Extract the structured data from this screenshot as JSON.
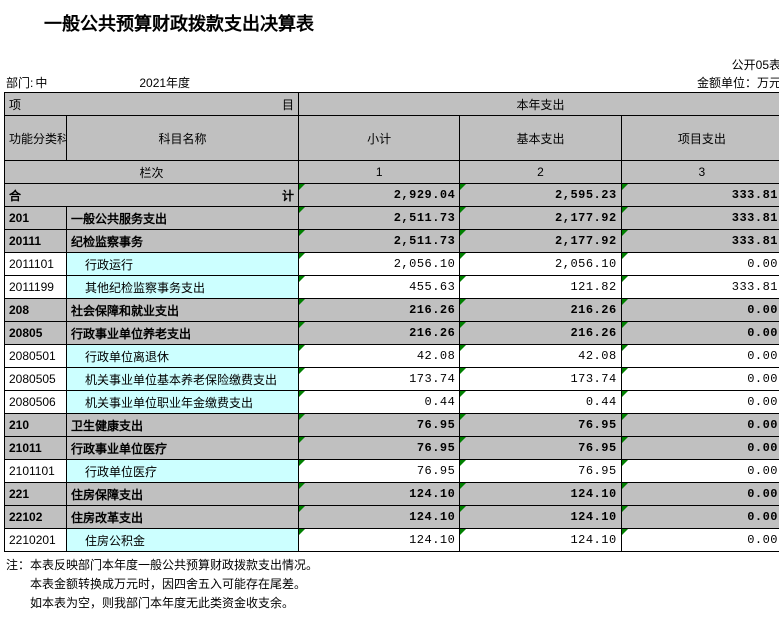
{
  "title": "一般公共预算财政拨款支出决算表",
  "meta": {
    "form_no": "公开05表",
    "dept_label": "部门:",
    "dept_value": "中",
    "year": "2021年度",
    "unit": "金额单位：万元"
  },
  "header": {
    "project": "项",
    "mu": "目",
    "this_year": "本年支出",
    "func_code": "功能分类科目编码",
    "subj_name": "科目名称",
    "subtotal": "小计",
    "basic": "基本支出",
    "project_exp": "项目支出",
    "lane": "栏次",
    "c1": "1",
    "c2": "2",
    "c3": "3"
  },
  "total_row": {
    "label_l": "合",
    "label_r": "计",
    "v1": "2,929.04",
    "v2": "2,595.23",
    "v3": "333.81"
  },
  "rows": [
    {
      "code": "201",
      "name": "一般公共服务支出",
      "v1": "2,511.73",
      "v2": "2,177.92",
      "v3": "333.81",
      "style": "gray",
      "indent": 0
    },
    {
      "code": "20111",
      "name": "纪检监察事务",
      "v1": "2,511.73",
      "v2": "2,177.92",
      "v3": "333.81",
      "style": "gray",
      "indent": 0
    },
    {
      "code": "2011101",
      "name": "行政运行",
      "v1": "2,056.10",
      "v2": "2,056.10",
      "v3": "0.00",
      "style": "cyan",
      "indent": 1
    },
    {
      "code": "2011199",
      "name": "其他纪检监察事务支出",
      "v1": "455.63",
      "v2": "121.82",
      "v3": "333.81",
      "style": "cyan",
      "indent": 1
    },
    {
      "code": "208",
      "name": "社会保障和就业支出",
      "v1": "216.26",
      "v2": "216.26",
      "v3": "0.00",
      "style": "gray",
      "indent": 0
    },
    {
      "code": "20805",
      "name": "行政事业单位养老支出",
      "v1": "216.26",
      "v2": "216.26",
      "v3": "0.00",
      "style": "gray",
      "indent": 0
    },
    {
      "code": "2080501",
      "name": "行政单位离退休",
      "v1": "42.08",
      "v2": "42.08",
      "v3": "0.00",
      "style": "cyan",
      "indent": 1
    },
    {
      "code": "2080505",
      "name": "机关事业单位基本养老保险缴费支出",
      "v1": "173.74",
      "v2": "173.74",
      "v3": "0.00",
      "style": "cyan",
      "indent": 1
    },
    {
      "code": "2080506",
      "name": "机关事业单位职业年金缴费支出",
      "v1": "0.44",
      "v2": "0.44",
      "v3": "0.00",
      "style": "cyan",
      "indent": 1
    },
    {
      "code": "210",
      "name": "卫生健康支出",
      "v1": "76.95",
      "v2": "76.95",
      "v3": "0.00",
      "style": "gray",
      "indent": 0
    },
    {
      "code": "21011",
      "name": "行政事业单位医疗",
      "v1": "76.95",
      "v2": "76.95",
      "v3": "0.00",
      "style": "gray",
      "indent": 0
    },
    {
      "code": "2101101",
      "name": "行政单位医疗",
      "v1": "76.95",
      "v2": "76.95",
      "v3": "0.00",
      "style": "cyan",
      "indent": 1
    },
    {
      "code": "221",
      "name": "住房保障支出",
      "v1": "124.10",
      "v2": "124.10",
      "v3": "0.00",
      "style": "gray",
      "indent": 0
    },
    {
      "code": "22102",
      "name": "住房改革支出",
      "v1": "124.10",
      "v2": "124.10",
      "v3": "0.00",
      "style": "gray",
      "indent": 0
    },
    {
      "code": "2210201",
      "name": "住房公积金",
      "v1": "124.10",
      "v2": "124.10",
      "v3": "0.00",
      "style": "cyan",
      "indent": 1
    }
  ],
  "notes": [
    "注：本表反映部门本年度一般公共预算财政拨款支出情况。",
    "本表金额转换成万元时，因四舍五入可能存在尾差。",
    "如本表为空，则我部门本年度无此类资金收支余。"
  ],
  "colors": {
    "header_bg": "#c0c0c0",
    "cyan_bg": "#ccffff",
    "tick": "#008000",
    "border": "#000000",
    "page_bg": "#ffffff"
  }
}
